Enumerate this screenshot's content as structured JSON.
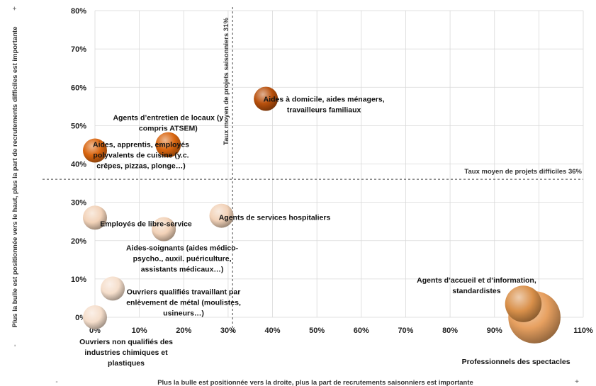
{
  "chart_data": {
    "type": "bubble",
    "xlabel": "Plus la bulle est positionnée vers la droite, plus la part de recrutements saisonniers est importante",
    "ylabel": "Plus la bulle est positionnée vers le haut, plus la part de recrutements difficiles est importante",
    "x_minus": "-",
    "x_plus": "+",
    "y_minus": "-",
    "y_plus": "+",
    "xlim": [
      0,
      110
    ],
    "ylim": [
      0,
      80
    ],
    "x_ticks": [
      "0%",
      "10%",
      "20%",
      "30%",
      "40%",
      "50%",
      "60%",
      "70%",
      "80%",
      "90%",
      "100%",
      "110%"
    ],
    "y_ticks": [
      "0%",
      "10%",
      "20%",
      "30%",
      "40%",
      "50%",
      "60%",
      "70%",
      "80%"
    ],
    "grid": true,
    "reference_lines": {
      "x": {
        "value": 31,
        "label": "Taux moyen de projets saisonniers 31%"
      },
      "y": {
        "value": 36,
        "label": "Taux moyen de projets difficiles 36%"
      }
    },
    "points": [
      {
        "label": "Aides à domicile, aides ménagers, travailleurs familiaux",
        "x": 38.5,
        "y": 57,
        "size": 1.0,
        "color": "#B8500C"
      },
      {
        "label": "Agents d'entretien de locaux (y compris ATSEM)",
        "x": 16.5,
        "y": 45,
        "size": 1.1,
        "color": "#D9650F"
      },
      {
        "label": "Aides, apprentis, employés polyvalents de cuisine (y.c. crêpes, pizzas, plonge…)",
        "x": 0,
        "y": 43.5,
        "size": 1.0,
        "color": "#D9650F"
      },
      {
        "label": "Employés de libre-service",
        "x": 0,
        "y": 26,
        "size": 1.0,
        "color": "#F2D2B8"
      },
      {
        "label": "Agents de services hospitaliers",
        "x": 28.5,
        "y": 26.5,
        "size": 1.0,
        "color": "#F2D2B8"
      },
      {
        "label": "Aides-soignants (aides médico-psycho., auxil. puériculture, assistants médicaux…)",
        "x": 15.5,
        "y": 23,
        "size": 1.0,
        "color": "#F2D2B8"
      },
      {
        "label": "Ouvriers qualifiés travaillant par enlèvement de métal (moulistes, usineurs…)",
        "x": 4,
        "y": 7.5,
        "size": 1.0,
        "color": "#F5DECB"
      },
      {
        "label": "Ouvriers non qualifiés des industries chimiques et plastiques",
        "x": 0,
        "y": 0,
        "size": 1.0,
        "color": "#F5DECB"
      },
      {
        "label": "Agents d'accueil et d'information, standardistes",
        "x": 96.5,
        "y": 3.5,
        "size": 2.3,
        "color": "#D9904A"
      },
      {
        "label": "Professionnels des spectacles",
        "x": 99,
        "y": 0,
        "size": 4.7,
        "color": "#E7A060"
      }
    ]
  }
}
